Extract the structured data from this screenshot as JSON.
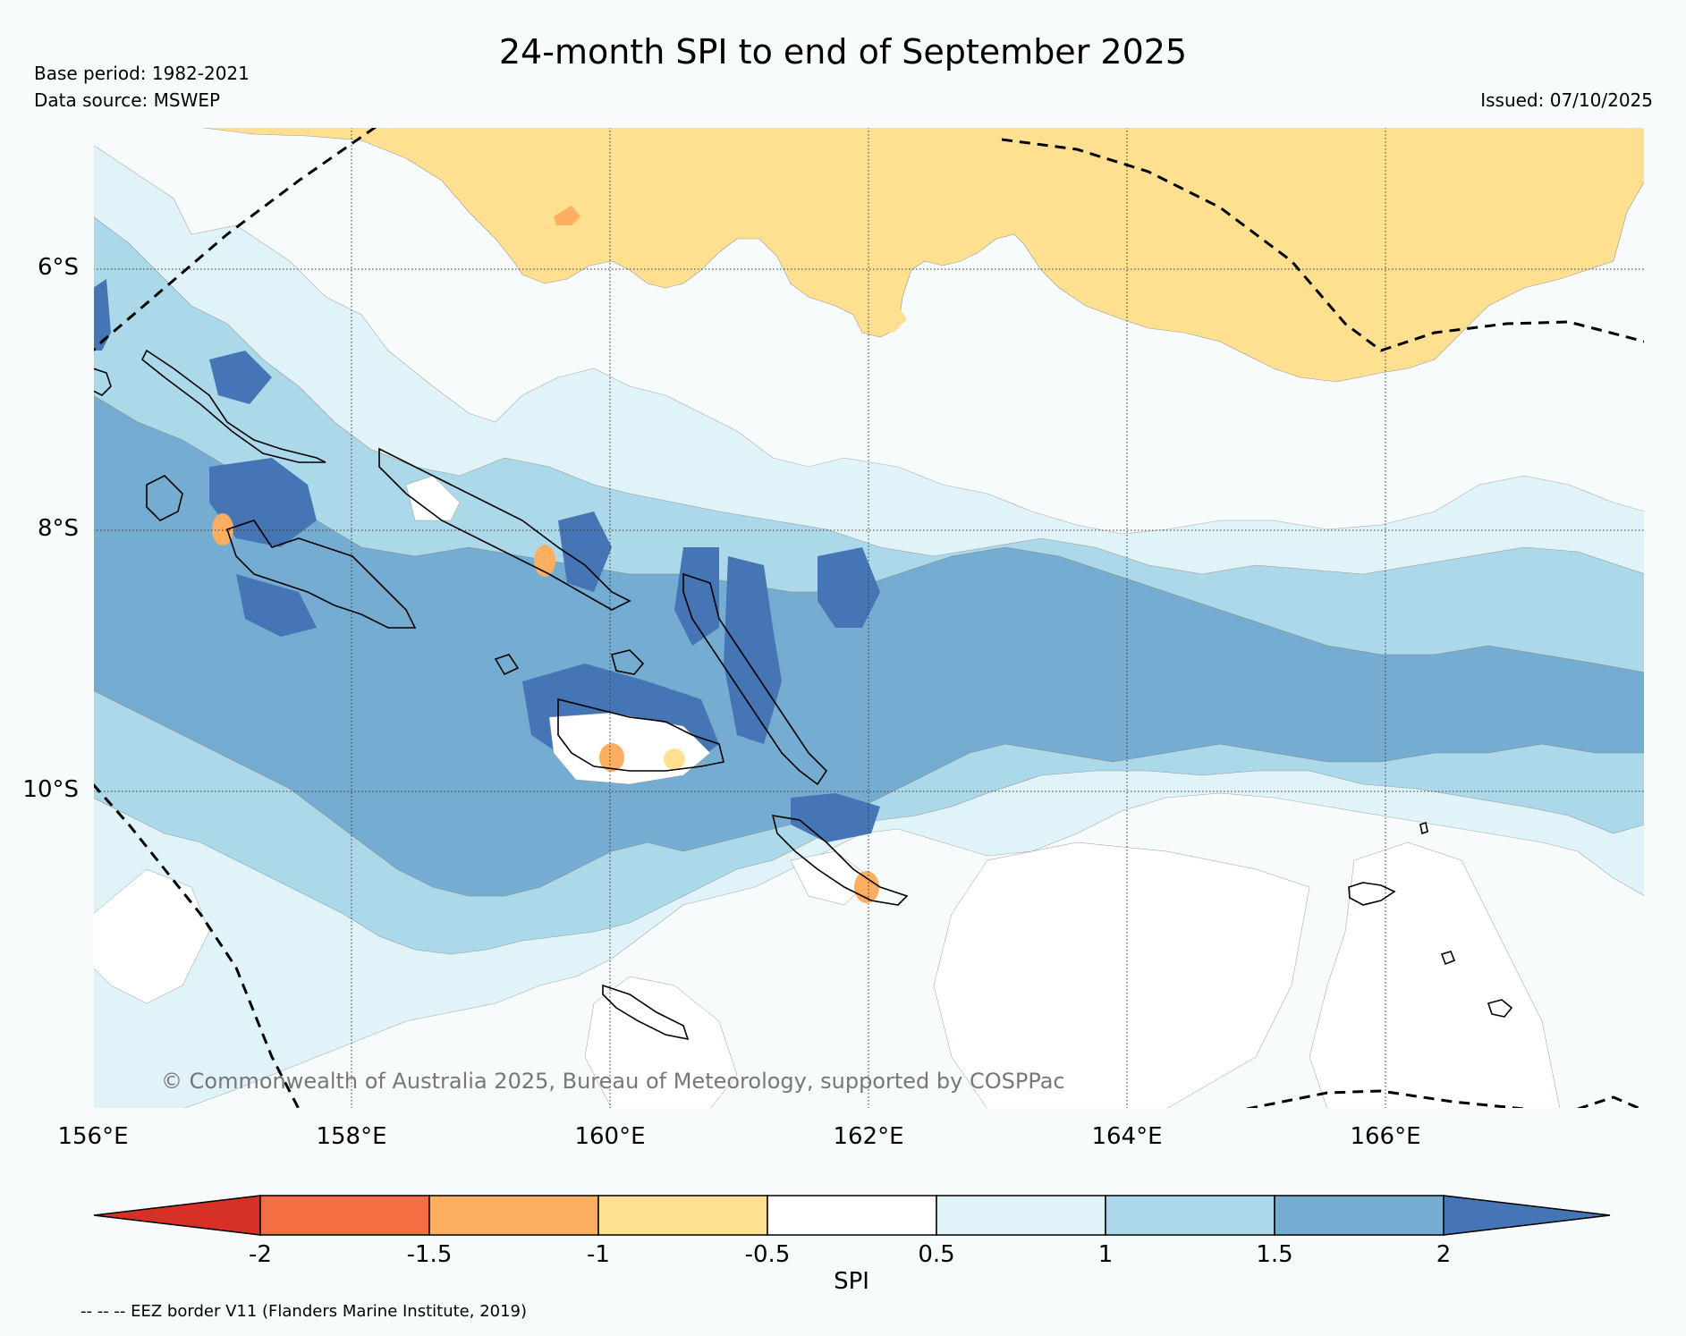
{
  "title": "24-month SPI to end of September 2025",
  "base_period": "Base period: 1982-2021",
  "data_source": "Data source: MSWEP",
  "issued": "Issued: 07/10/2025",
  "credit": "© Commonwealth of Australia 2025, Bureau of Meteorology, supported by COSPPac",
  "eez_note": "-- -- -- EEZ border V11 (Flanders Marine Institute, 2019)",
  "map": {
    "lat_labels": [
      "6°S",
      "8°S",
      "10°S"
    ],
    "lon_labels": [
      "156°E",
      "158°E",
      "160°E",
      "162°E",
      "164°E",
      "166°E"
    ],
    "region": {
      "lon_min": 156,
      "lon_max": 168,
      "lat_min": -12.4,
      "lat_max": -4.9
    }
  },
  "colorbar": {
    "label": "SPI",
    "ticks": [
      "-2",
      "-1.5",
      "-1",
      "-0.5",
      "0.5",
      "1",
      "1.5",
      "2"
    ],
    "colors": {
      "lt_m2": "#d73027",
      "m2_m15": "#f46d43",
      "m15_m1": "#fdae61",
      "m1_m05": "#fee090",
      "m05_05": "#ffffff",
      "05_1": "#e0f3f8",
      "1_15": "#abd9e9",
      "15_2": "#74add1",
      "gt_2": "#4575b4"
    }
  }
}
